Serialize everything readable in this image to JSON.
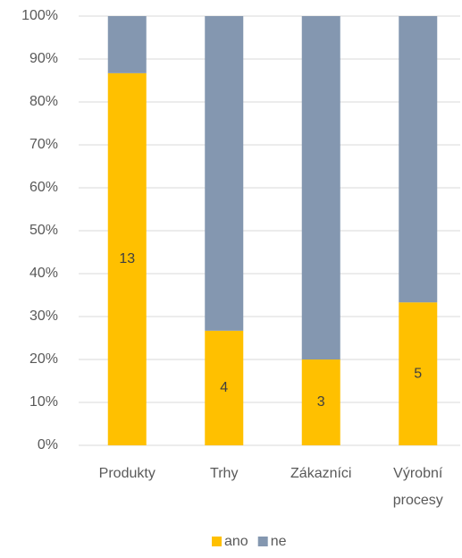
{
  "chart_data": {
    "type": "stacked_percent_bar",
    "categories": [
      "Produkty",
      "Trhy",
      "Zákazníci",
      "Výrobní procesy"
    ],
    "series": [
      {
        "name": "ano",
        "color": "#FFC000",
        "values": [
          86.7,
          26.7,
          20,
          33.3
        ],
        "data_labels": [
          13,
          4,
          3,
          5
        ]
      },
      {
        "name": "ne",
        "color": "#8497B0",
        "values": [
          13.3,
          73.3,
          80,
          66.7
        ]
      }
    ],
    "ylim": [
      0,
      100
    ],
    "yticks": [
      {
        "value": 0,
        "label": "0%"
      },
      {
        "value": 10,
        "label": "10%"
      },
      {
        "value": 20,
        "label": "20%"
      },
      {
        "value": 30,
        "label": "30%"
      },
      {
        "value": 40,
        "label": "40%"
      },
      {
        "value": 50,
        "label": "50%"
      },
      {
        "value": 60,
        "label": "60%"
      },
      {
        "value": 70,
        "label": "70%"
      },
      {
        "value": 80,
        "label": "80%"
      },
      {
        "value": 90,
        "label": "90%"
      },
      {
        "value": 100,
        "label": "100%"
      }
    ],
    "grid": true,
    "legend": "bottom"
  }
}
